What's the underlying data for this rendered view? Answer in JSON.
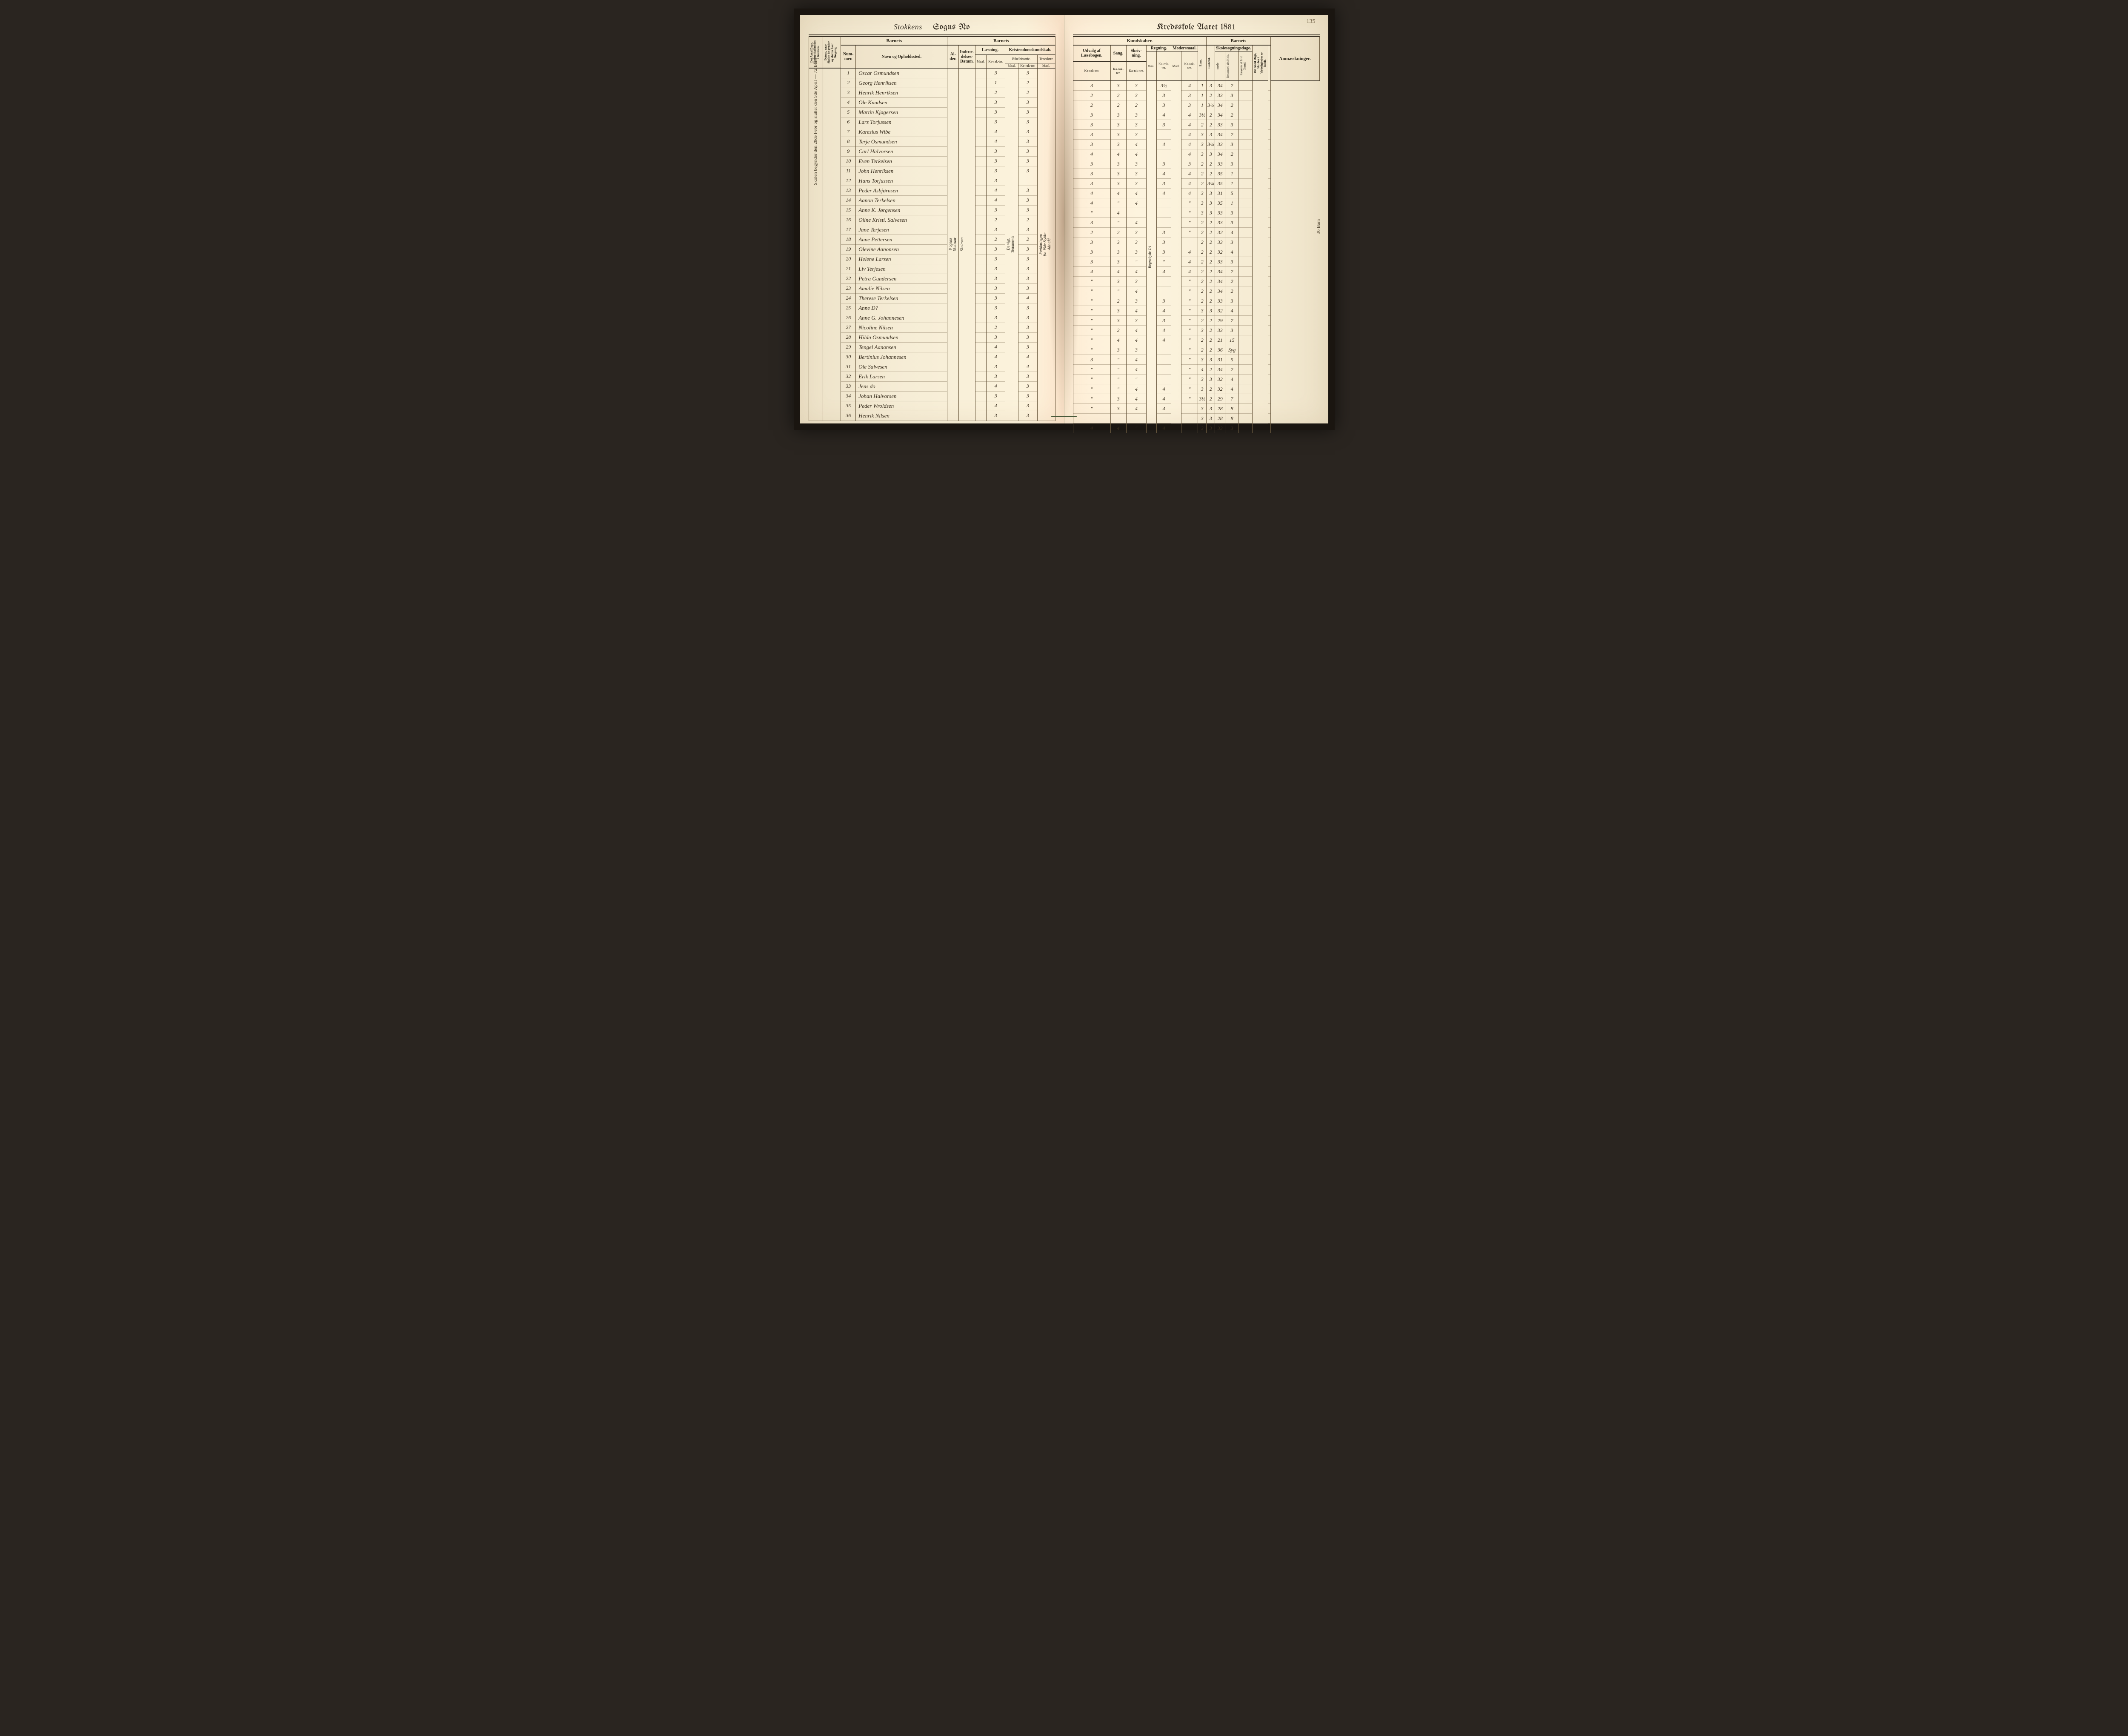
{
  "page_number": "135",
  "title_left_script": "Stokkens",
  "title_left_print": "Sogns No",
  "title_right_print": "Kredsskole Aaret 18",
  "title_year_fill": "81",
  "side_note_left": "Skolen begynder den 28de Febr og slutter den 9de April — 72 Barn",
  "side_note_right": "36 Barn",
  "sections": {
    "barnets1": "Barnets",
    "barnets2": "Barnets",
    "kundskaber": "Kundskaber.",
    "barnets3": "Barnets",
    "anm": "Anmærkninger."
  },
  "groups": {
    "laesning": "Læsning.",
    "kristendom": "Kristendomskundskab.",
    "udvalg": "Udvalg af Læsebogen.",
    "sang": "Sang.",
    "skriv": "Skriv-ning.",
    "regning": "Regning.",
    "modersmaal": "Modersmaal.",
    "skolesog": "Skolesøgningsdage."
  },
  "cols": {
    "dage_skole": "Det Antal Dage, Skolen skal holdes i Kredsen.",
    "datum_naar": "Datum, naar Skolen be-gynder og slutter hver Omgang.",
    "nummer": "Num-mer.",
    "navn": "Navn og Opholdssted.",
    "alder": "Al-der.",
    "indtrae": "Indtræ-delses-Datum.",
    "maal": "Maal.",
    "karakter": "Ka-rak-ter.",
    "bibel": "Bibelhistorie.",
    "troes": "Troeslære",
    "evne": "Evne.",
    "forhold": "Forhold.",
    "mode": "møde",
    "fors_hele": "forsømte i det Hele.",
    "fors_lovl": "forsømte af lovl Grund.",
    "antal_virk": "Det Antal Dage, Sko-len i Virkeligheden er holdt."
  },
  "col_notes": {
    "alder_note": "9 ogsaa Skoleaar",
    "indtrae_note": "Skolesøn",
    "bibel_note": "De vigt. Testamente",
    "troes_note": "Forklaringen fra 19de Stykke 4de afd",
    "udvalg_note": "Nyectiekurs fra Side",
    "regning_note": "Regnebyde Tri"
  },
  "rows": [
    {
      "n": "1",
      "name": "Oscar Osmundsen",
      "l": "3",
      "b": "3",
      "t": "3",
      "u": "3",
      "sa": "3",
      "sk": "3",
      "r": "3½",
      "m": "4",
      "e": "1",
      "f": "3",
      "md": "34",
      "fh": "2"
    },
    {
      "n": "2",
      "name": "Georg Henriksen",
      "l": "1",
      "b": "2",
      "t": "2",
      "u": "2",
      "sa": "2",
      "sk": "3",
      "r": "3",
      "m": "3",
      "e": "1",
      "f": "2",
      "md": "33",
      "fh": "3"
    },
    {
      "n": "3",
      "name": "Henrik Henriksen",
      "l": "2",
      "b": "2",
      "t": "2",
      "u": "2",
      "sa": "2",
      "sk": "2",
      "r": "3",
      "m": "3",
      "e": "1",
      "f": "3½",
      "md": "34",
      "fh": "2"
    },
    {
      "n": "4",
      "name": "Ole Knudsen",
      "l": "3",
      "b": "3",
      "t": "3",
      "u": "3",
      "sa": "3",
      "sk": "3",
      "r": "4",
      "m": "4",
      "e": "3½",
      "f": "2",
      "md": "34",
      "fh": "2"
    },
    {
      "n": "5",
      "name": "Martin Kjøgersen",
      "l": "3",
      "b": "3",
      "t": "3",
      "u": "3",
      "sa": "3",
      "sk": "3",
      "r": "3",
      "m": "4",
      "e": "2",
      "f": "2",
      "md": "33",
      "fh": "3"
    },
    {
      "n": "6",
      "name": "Lars Torjussen",
      "l": "3",
      "b": "3",
      "t": "3",
      "u": "3",
      "sa": "3",
      "sk": "3",
      "r": "",
      "m": "4",
      "e": "3",
      "f": "3",
      "md": "34",
      "fh": "2"
    },
    {
      "n": "7",
      "name": "Karesius Wibe",
      "l": "4",
      "b": "3",
      "t": "3",
      "u": "3",
      "sa": "3",
      "sk": "4",
      "r": "4",
      "m": "4",
      "e": "3",
      "f": "3¼",
      "md": "33",
      "fh": "3"
    },
    {
      "n": "8",
      "name": "Terje Osmundsen",
      "l": "4",
      "b": "3",
      "t": "",
      "u": "4",
      "sa": "4",
      "sk": "4",
      "r": "",
      "m": "4",
      "e": "3",
      "f": "3",
      "md": "34",
      "fh": "2"
    },
    {
      "n": "9",
      "name": "Carl Halvorsen",
      "l": "3",
      "b": "3",
      "t": "",
      "u": "3",
      "sa": "3",
      "sk": "3",
      "r": "3",
      "m": "3",
      "e": "2",
      "f": "2",
      "md": "33",
      "fh": "3"
    },
    {
      "n": "10",
      "name": "Even Terkelsen",
      "l": "3",
      "b": "3",
      "t": "",
      "u": "3",
      "sa": "3",
      "sk": "3",
      "r": "4",
      "m": "4",
      "e": "2",
      "f": "2",
      "md": "35",
      "fh": "1"
    },
    {
      "n": "11",
      "name": "John Henriksen",
      "l": "3",
      "b": "3",
      "t": "",
      "u": "3",
      "sa": "3",
      "sk": "3",
      "r": "3",
      "m": "4",
      "e": "2",
      "f": "3¼",
      "md": "35",
      "fh": "1"
    },
    {
      "n": "12",
      "name": "Hans Torjussen",
      "l": "3",
      "b": "",
      "t": "",
      "u": "4",
      "sa": "4",
      "sk": "4",
      "r": "4",
      "m": "4",
      "e": "3",
      "f": "3",
      "md": "31",
      "fh": "5"
    },
    {
      "n": "13",
      "name": "Peder Asbjørnsen",
      "l": "4",
      "b": "3",
      "t": "",
      "u": "4",
      "sa": "\"",
      "sk": "4",
      "r": "",
      "m": "\"",
      "e": "3",
      "f": "3",
      "md": "35",
      "fh": "1"
    },
    {
      "n": "14",
      "name": "Aanon Terkelsen",
      "l": "4",
      "b": "3",
      "t": "",
      "u": "\"",
      "sa": "4",
      "sk": "",
      "r": "",
      "m": "\"",
      "e": "3",
      "f": "3",
      "md": "33",
      "fh": "3"
    },
    {
      "n": "15",
      "name": "Anne K. Jørgensen",
      "l": "3",
      "b": "3",
      "t": "",
      "u": "3",
      "sa": "\"",
      "sk": "4",
      "r": "",
      "m": "\"",
      "e": "2",
      "f": "2",
      "md": "33",
      "fh": "3"
    },
    {
      "n": "16",
      "name": "Oline Kristi. Salvesen",
      "l": "2",
      "b": "2",
      "t": "",
      "u": "2",
      "sa": "2",
      "sk": "3",
      "r": "3",
      "m": "\"",
      "e": "2",
      "f": "2",
      "md": "32",
      "fh": "4"
    },
    {
      "n": "17",
      "name": "Jane Terjesen",
      "l": "3",
      "b": "3",
      "t": "",
      "u": "3",
      "sa": "3",
      "sk": "3",
      "r": "3",
      "m": "",
      "e": "2",
      "f": "2",
      "md": "33",
      "fh": "3"
    },
    {
      "n": "18",
      "name": "Anne Pettersen",
      "l": "2",
      "b": "2",
      "t": "",
      "u": "3",
      "sa": "3",
      "sk": "3",
      "r": "3",
      "m": "4",
      "e": "2",
      "f": "2",
      "md": "32",
      "fh": "4"
    },
    {
      "n": "19",
      "name": "Olevine Aanonsen",
      "l": "3",
      "b": "3",
      "t": "",
      "u": "3",
      "sa": "3",
      "sk": "\"",
      "r": "\"",
      "m": "4",
      "e": "2",
      "f": "2",
      "md": "33",
      "fh": "3"
    },
    {
      "n": "20",
      "name": "Helene Larsen",
      "l": "3",
      "b": "3",
      "t": "",
      "u": "4",
      "sa": "4",
      "sk": "4",
      "r": "4",
      "m": "4",
      "e": "2",
      "f": "2",
      "md": "34",
      "fh": "2"
    },
    {
      "n": "21",
      "name": "Liv Terjesen",
      "l": "3",
      "b": "3",
      "t": "",
      "u": "\"",
      "sa": "3",
      "sk": "3",
      "r": "",
      "m": "\"",
      "e": "2",
      "f": "2",
      "md": "34",
      "fh": "2"
    },
    {
      "n": "22",
      "name": "Petra Gundersen",
      "l": "3",
      "b": "3",
      "t": "",
      "u": "\"",
      "sa": "\"",
      "sk": "4",
      "r": "",
      "m": "\"",
      "e": "2",
      "f": "2",
      "md": "34",
      "fh": "2"
    },
    {
      "n": "23",
      "name": "Amalie Nilsen",
      "l": "3",
      "b": "3",
      "t": "",
      "u": "\"",
      "sa": "2",
      "sk": "3",
      "r": "3",
      "m": "\"",
      "e": "2",
      "f": "2",
      "md": "33",
      "fh": "3"
    },
    {
      "n": "24",
      "name": "Therese Terkelsen",
      "l": "3",
      "b": "4",
      "t": "",
      "u": "\"",
      "sa": "3",
      "sk": "4",
      "r": "4",
      "m": "\"",
      "e": "3",
      "f": "3",
      "md": "32",
      "fh": "4"
    },
    {
      "n": "25",
      "name": "Anne D?",
      "l": "3",
      "b": "3",
      "t": "",
      "u": "\"",
      "sa": "3",
      "sk": "3",
      "r": "3",
      "m": "\"",
      "e": "2",
      "f": "2",
      "md": "29",
      "fh": "7"
    },
    {
      "n": "26",
      "name": "Anne G. Johannesen",
      "l": "3",
      "b": "3",
      "t": "",
      "u": "\"",
      "sa": "2",
      "sk": "4",
      "r": "4",
      "m": "\"",
      "e": "3",
      "f": "2",
      "md": "33",
      "fh": "3"
    },
    {
      "n": "27",
      "name": "Nicoline Nilsen",
      "l": "2",
      "b": "3",
      "t": "",
      "u": "\"",
      "sa": "4",
      "sk": "4",
      "r": "4",
      "m": "\"",
      "e": "2",
      "f": "2",
      "md": "21",
      "fh": "15"
    },
    {
      "n": "28",
      "name": "Hilda Osmundsen",
      "l": "3",
      "b": "3",
      "t": "",
      "u": "\"",
      "sa": "3",
      "sk": "3",
      "r": "",
      "m": "\"",
      "e": "2",
      "f": "2",
      "md": "36",
      "fh": "Syg"
    },
    {
      "n": "29",
      "name": "Tengel Aanonsen",
      "l": "4",
      "b": "3",
      "t": "",
      "u": "3",
      "sa": "\"",
      "sk": "4",
      "r": "",
      "m": "\"",
      "e": "3",
      "f": "3",
      "md": "31",
      "fh": "5"
    },
    {
      "n": "30",
      "name": "Bertinius Johannesen",
      "l": "4",
      "b": "4",
      "t": "",
      "u": "\"",
      "sa": "\"",
      "sk": "4",
      "r": "",
      "m": "\"",
      "e": "4",
      "f": "2",
      "md": "34",
      "fh": "2"
    },
    {
      "n": "31",
      "name": "Ole Salvesen",
      "l": "3",
      "b": "4",
      "t": "",
      "u": "\"",
      "sa": "\"",
      "sk": "\"",
      "r": "",
      "m": "\"",
      "e": "3",
      "f": "3",
      "md": "32",
      "fh": "4"
    },
    {
      "n": "32",
      "name": "Erik Larsen",
      "l": "3",
      "b": "3",
      "t": "",
      "u": "\"",
      "sa": "\"",
      "sk": "4",
      "r": "4",
      "m": "\"",
      "e": "3",
      "f": "2",
      "md": "32",
      "fh": "4"
    },
    {
      "n": "33",
      "name": "Jens   do",
      "l": "4",
      "b": "3",
      "t": "",
      "u": "\"",
      "sa": "3",
      "sk": "4",
      "r": "4",
      "m": "\"",
      "e": "3½",
      "f": "2",
      "md": "29",
      "fh": "7"
    },
    {
      "n": "34",
      "name": "Johan Halvorsen",
      "l": "3",
      "b": "3",
      "t": "",
      "u": "\"",
      "sa": "3",
      "sk": "4",
      "r": "4",
      "m": "",
      "e": "3",
      "f": "3",
      "md": "28",
      "fh": "8"
    },
    {
      "n": "35",
      "name": "Peder Wroldsen",
      "l": "4",
      "b": "3",
      "t": "",
      "u": "",
      "sa": "",
      "sk": "",
      "r": "",
      "m": "",
      "e": "3",
      "f": "3",
      "md": "28",
      "fh": "8"
    },
    {
      "n": "36",
      "name": "Henrik Nilsen",
      "l": "3",
      "b": "3",
      "t": "",
      "u": "4",
      "sa": "4",
      "sk": "\"",
      "r": "4",
      "m": "",
      "e": "3",
      "f": "3",
      "md": "33",
      "fh": "3"
    }
  ],
  "colors": {
    "ink": "#3a2f1f",
    "rule": "#3a3226",
    "rule_light": "#6b5a3f",
    "paper_left_a": "#ede2c8",
    "paper_left_b": "#fcf3dc",
    "paper_right_a": "#ffefd8",
    "paper_right_b": "#ede2c8"
  },
  "fonts": {
    "header_size_pt": 20,
    "script_size_pt": 18,
    "body_size_pt": 9,
    "name_size_pt": 13
  }
}
